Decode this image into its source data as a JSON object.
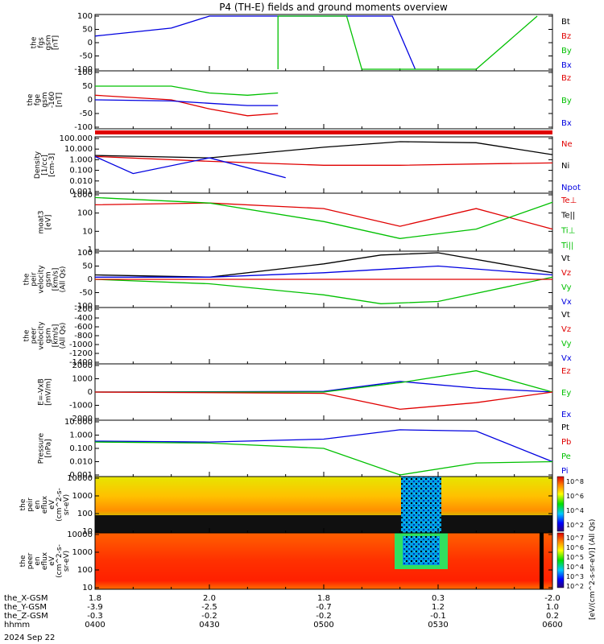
{
  "title": "P4 (TH-E) fields and ground moments overview",
  "date": "2024 Sep 22",
  "colors": {
    "black": "#000000",
    "red": "#e00000",
    "green": "#00c000",
    "blue": "#0000e0"
  },
  "panels": [
    {
      "id": "fgs",
      "ylabel": [
        "the",
        "fgs",
        "gsm",
        "[nT]"
      ],
      "yticks": [
        "100",
        "50",
        "0",
        "-50",
        "-100"
      ],
      "legend": [
        {
          "t": "Bt",
          "c": "black"
        },
        {
          "t": "Bz",
          "c": "red"
        },
        {
          "t": "By",
          "c": "green"
        },
        {
          "t": "Bx",
          "c": "blue"
        }
      ]
    },
    {
      "id": "fge",
      "ylabel": [
        "the",
        "fge",
        "gsm",
        "-160",
        "[nT]"
      ],
      "yticks": [
        "100",
        "50",
        "0",
        "-50",
        "-100"
      ],
      "legend": [
        {
          "t": "Bz",
          "c": "red"
        },
        {
          "t": "By",
          "c": "green"
        },
        {
          "t": "Bx",
          "c": "blue"
        }
      ]
    },
    {
      "id": "density",
      "ylabel": [
        "Density",
        "[1/cc]",
        "[cm-3]"
      ],
      "yticks": [
        "100.000",
        "10.000",
        "1.000",
        "0.100",
        "0.010",
        "0.001"
      ],
      "legend": [
        {
          "t": "Ne",
          "c": "red"
        },
        {
          "t": "Ni",
          "c": "black"
        },
        {
          "t": "Npot",
          "c": "blue"
        }
      ]
    },
    {
      "id": "temp",
      "ylabel": [
        "moat3",
        "[eV]"
      ],
      "yticks": [
        "1000",
        "100",
        "10",
        "1"
      ],
      "legend": [
        {
          "t": "Te⊥",
          "c": "red"
        },
        {
          "t": "Te||",
          "c": "black"
        },
        {
          "t": "Ti⊥",
          "c": "green"
        },
        {
          "t": "Ti||",
          "c": "green"
        }
      ]
    },
    {
      "id": "peir_vel",
      "ylabel": [
        "the",
        "peir",
        "velocity",
        "gsm",
        "[km/s]",
        "(All Qs)"
      ],
      "yticks": [
        "100",
        "50",
        "0",
        "-50",
        "-100"
      ],
      "legend": [
        {
          "t": "Vt",
          "c": "black"
        },
        {
          "t": "Vz",
          "c": "red"
        },
        {
          "t": "Vy",
          "c": "green"
        },
        {
          "t": "Vx",
          "c": "blue"
        }
      ]
    },
    {
      "id": "peer_vel",
      "ylabel": [
        "the",
        "peer",
        "velocity",
        "gsm",
        "[km/s]",
        "(All Qs)"
      ],
      "yticks": [
        "-200",
        "-400",
        "-600",
        "-800",
        "-1000",
        "-1200",
        "-1400"
      ],
      "legend": [
        {
          "t": "Vt",
          "c": "black"
        },
        {
          "t": "Vz",
          "c": "red"
        },
        {
          "t": "Vy",
          "c": "green"
        },
        {
          "t": "Vx",
          "c": "blue"
        }
      ]
    },
    {
      "id": "efield",
      "ylabel": [
        "E=-VxB",
        "[mV/m]"
      ],
      "yticks": [
        "2000",
        "1000",
        "0",
        "-1000",
        "-2000"
      ],
      "legend": [
        {
          "t": "Ez",
          "c": "red"
        },
        {
          "t": "Ey",
          "c": "green"
        },
        {
          "t": "Ex",
          "c": "blue"
        }
      ]
    },
    {
      "id": "pressure",
      "ylabel": [
        "Pressure",
        "[nPa]"
      ],
      "yticks": [
        "10.000",
        "1.000",
        "0.100",
        "0.010",
        "0.001"
      ],
      "legend": [
        {
          "t": "Pt",
          "c": "black"
        },
        {
          "t": "Pb",
          "c": "red"
        },
        {
          "t": "Pe",
          "c": "green"
        },
        {
          "t": "Pi",
          "c": "blue"
        }
      ]
    },
    {
      "id": "peir_spec",
      "ylabel": [
        "the",
        "peir",
        "en",
        "eflux",
        "eV",
        "(cm^2-s-",
        "sr-eV)"
      ],
      "yticks": [
        "10000",
        "1000",
        "100",
        "10"
      ]
    },
    {
      "id": "peer_spec",
      "ylabel": [
        "the",
        "peer",
        "en",
        "eflux",
        "eV",
        "(cm^2-s-",
        "sr-eV)"
      ],
      "yticks": [
        "10000",
        "1000",
        "100",
        "10"
      ]
    }
  ],
  "colorbar": {
    "label": "[eV/(cm^2-s-sr-eV)] (All Qs)",
    "top_ticks": [
      "10^8",
      "10^6",
      "10^4",
      "10^2"
    ],
    "bottom_ticks": [
      "10^7",
      "10^6",
      "10^5",
      "10^4",
      "10^3",
      "10^2"
    ]
  },
  "xaxis": {
    "rows": [
      {
        "name": "the_X-GSM",
        "values": [
          "1.8",
          "2.0",
          "1.8",
          "0.3",
          "-2.0"
        ]
      },
      {
        "name": "the_Y-GSM",
        "values": [
          "-3.9",
          "-2.5",
          "-0.7",
          "1.2",
          "1.0"
        ]
      },
      {
        "name": "the_Z-GSM",
        "values": [
          "-0.3",
          "-0.2",
          "-0.2",
          "-0.1",
          "0.2"
        ]
      },
      {
        "name": "hhmm",
        "values": [
          "0400",
          "0430",
          "0500",
          "0530",
          "0600"
        ]
      }
    ]
  },
  "chart_data": {
    "type": "line",
    "title": "P4 (TH-E) fields and ground moments overview",
    "x_label": "hhmm",
    "x_ticks": [
      "0400",
      "0430",
      "0500",
      "0530",
      "0600"
    ],
    "panels": [
      {
        "name": "fgs gsm [nT]",
        "ylim": [
          -100,
          100
        ],
        "series": [
          {
            "name": "Bx",
            "x": [
              "0400",
              "0420",
              "0430",
              "0445",
              "0518",
              "0524"
            ],
            "y": [
              25,
              55,
              100,
              100,
              100,
              -100
            ]
          },
          {
            "name": "By",
            "x": [
              "0448",
              "0448",
              "0506",
              "0510",
              "0540",
              "0556"
            ],
            "y": [
              -100,
              100,
              100,
              -100,
              -100,
              100
            ]
          }
        ]
      },
      {
        "name": "fge gsm -160 [nT]",
        "ylim": [
          -120,
          120
        ],
        "series": [
          {
            "name": "Bz",
            "x": [
              "0400",
              "0420",
              "0430",
              "0440",
              "0448"
            ],
            "y": [
              20,
              0,
              -40,
              -70,
              -60
            ]
          },
          {
            "name": "By",
            "x": [
              "0400",
              "0420",
              "0430",
              "0440",
              "0448"
            ],
            "y": [
              60,
              60,
              30,
              20,
              30
            ]
          },
          {
            "name": "Bx",
            "x": [
              "0400",
              "0420",
              "0430",
              "0440",
              "0448"
            ],
            "y": [
              0,
              -5,
              -15,
              -25,
              -25
            ]
          }
        ]
      },
      {
        "name": "Density [1/cc] [cm-3]",
        "ylim": [
          0.001,
          100
        ],
        "scale": "log",
        "series": [
          {
            "name": "Ni",
            "x": [
              "0400",
              "0430",
              "0500",
              "0520",
              "0540",
              "0600"
            ],
            "y": [
              2.5,
              1.5,
              15,
              50,
              40,
              3
            ]
          },
          {
            "name": "Ne",
            "x": [
              "0400",
              "0430",
              "0500",
              "0520",
              "0540",
              "0600"
            ],
            "y": [
              2,
              0.7,
              0.3,
              0.3,
              0.4,
              0.5
            ]
          },
          {
            "name": "Npot",
            "x": [
              "0400",
              "0410",
              "0430",
              "0450"
            ],
            "y": [
              2,
              0.05,
              1.5,
              0.02
            ]
          }
        ]
      },
      {
        "name": "moat3 [eV]",
        "ylim": [
          1,
          3000
        ],
        "scale": "log",
        "series": [
          {
            "name": "Te",
            "x": [
              "0400",
              "0430",
              "0500",
              "0520",
              "0540",
              "0600"
            ],
            "y": [
              700,
              900,
              400,
              30,
              400,
              20
            ]
          },
          {
            "name": "Ti||",
            "x": [
              "0400",
              "0430",
              "0500",
              "0520",
              "0540",
              "0600"
            ],
            "y": [
              2000,
              900,
              60,
              5,
              20,
              1000
            ]
          }
        ]
      },
      {
        "name": "peir velocity gsm [km/s] (All Qs)",
        "ylim": [
          -120,
          120
        ],
        "series": [
          {
            "name": "Vt",
            "x": [
              "0400",
              "0430",
              "0500",
              "0515",
              "0530",
              "0600"
            ],
            "y": [
              20,
              10,
              70,
              110,
              120,
              30
            ]
          },
          {
            "name": "Vx",
            "x": [
              "0400",
              "0430",
              "0500",
              "0530",
              "0600"
            ],
            "y": [
              10,
              10,
              30,
              60,
              20
            ]
          },
          {
            "name": "Vy",
            "x": [
              "0400",
              "0430",
              "0500",
              "0515",
              "0530",
              "0600"
            ],
            "y": [
              0,
              -20,
              -70,
              -110,
              -100,
              10
            ]
          },
          {
            "name": "Vz",
            "x": [
              "0400",
              "0600"
            ],
            "y": [
              0,
              0
            ]
          }
        ]
      },
      {
        "name": "E=-VxB [mV/m]",
        "ylim": [
          -2000,
          2000
        ],
        "series": [
          {
            "name": "Ex",
            "x": [
              "0400",
              "0500",
              "0520",
              "0540",
              "0600"
            ],
            "y": [
              0,
              50,
              800,
              300,
              0
            ]
          },
          {
            "name": "Ey",
            "x": [
              "0400",
              "0500",
              "0520",
              "0540",
              "0600"
            ],
            "y": [
              0,
              0,
              700,
              1600,
              0
            ]
          },
          {
            "name": "Ez",
            "x": [
              "0400",
              "0500",
              "0520",
              "0540",
              "0600"
            ],
            "y": [
              0,
              -100,
              -1300,
              -800,
              0
            ]
          }
        ]
      },
      {
        "name": "Pressure [nPa]",
        "ylim": [
          0.001,
          10
        ],
        "scale": "log",
        "series": [
          {
            "name": "Pi",
            "x": [
              "0400",
              "0430",
              "0500",
              "0520",
              "0540",
              "0600"
            ],
            "y": [
              0.35,
              0.3,
              0.5,
              2.5,
              2,
              0.01
            ]
          },
          {
            "name": "Pe",
            "x": [
              "0400",
              "0430",
              "0500",
              "0520",
              "0540",
              "0600"
            ],
            "y": [
              0.3,
              0.25,
              0.1,
              0.001,
              0.008,
              0.01
            ]
          }
        ]
      }
    ]
  }
}
